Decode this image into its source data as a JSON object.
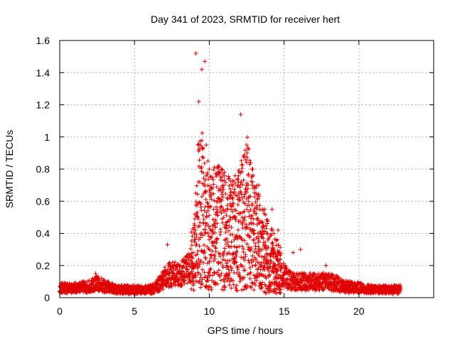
{
  "chart_data": {
    "type": "scatter",
    "title": "Day 341 of 2023, SRMTID for receiver hert",
    "xlabel": "GPS time / hours",
    "ylabel": "SRMTID / TECUs",
    "xlim": [
      0,
      25
    ],
    "ylim": [
      0,
      1.6
    ],
    "xticks": [
      0,
      5,
      10,
      15,
      20
    ],
    "xtick_labels": [
      "0",
      "5",
      "10",
      "15",
      "20"
    ],
    "yticks": [
      0,
      0.2,
      0.4,
      0.6,
      0.8,
      1,
      1.2,
      1.4,
      1.6
    ],
    "ytick_labels": [
      "0",
      "0.2",
      "0.4",
      "0.6",
      "0.8",
      "1",
      "1.2",
      "1.4",
      "1.6"
    ],
    "grid": true,
    "marker": "+",
    "colors": {
      "points": "#e00000",
      "grid": "#b0b0b0",
      "axes": "#000000"
    },
    "series_envelope": {
      "name": "hert",
      "x": [
        0,
        1,
        2,
        2.5,
        3,
        4,
        5,
        6,
        6.5,
        7,
        7.5,
        8,
        8.5,
        9,
        9.2,
        9.5,
        9.8,
        10,
        10.5,
        11,
        11.5,
        12,
        12.5,
        13,
        13.5,
        14,
        14.5,
        15,
        15.5,
        16,
        17,
        18,
        18.5,
        19,
        20,
        21,
        22,
        22.8
      ],
      "y": [
        0.06,
        0.06,
        0.07,
        0.09,
        0.07,
        0.05,
        0.05,
        0.05,
        0.07,
        0.12,
        0.15,
        0.14,
        0.18,
        0.25,
        0.5,
        0.55,
        0.45,
        0.4,
        0.45,
        0.42,
        0.4,
        0.42,
        0.55,
        0.4,
        0.3,
        0.25,
        0.2,
        0.14,
        0.1,
        0.1,
        0.1,
        0.1,
        0.09,
        0.07,
        0.06,
        0.05,
        0.05,
        0.05
      ]
    },
    "peaks": {
      "x": [
        9.1,
        9.3,
        9.5,
        9.7,
        9.8,
        9.9,
        10.0,
        10.3,
        11.2,
        11.7,
        12.1,
        12.3,
        12.5,
        12.7,
        12.9,
        13.3,
        13.7,
        14.2,
        14.6,
        15.6,
        16.1,
        17.8,
        2.4,
        7.2
      ],
      "y": [
        1.52,
        1.22,
        1.42,
        1.47,
        0.95,
        0.85,
        0.8,
        0.55,
        0.62,
        0.55,
        1.14,
        0.88,
        0.95,
        0.83,
        0.72,
        0.7,
        0.55,
        0.55,
        0.42,
        0.28,
        0.3,
        0.2,
        0.15,
        0.33
      ]
    }
  }
}
